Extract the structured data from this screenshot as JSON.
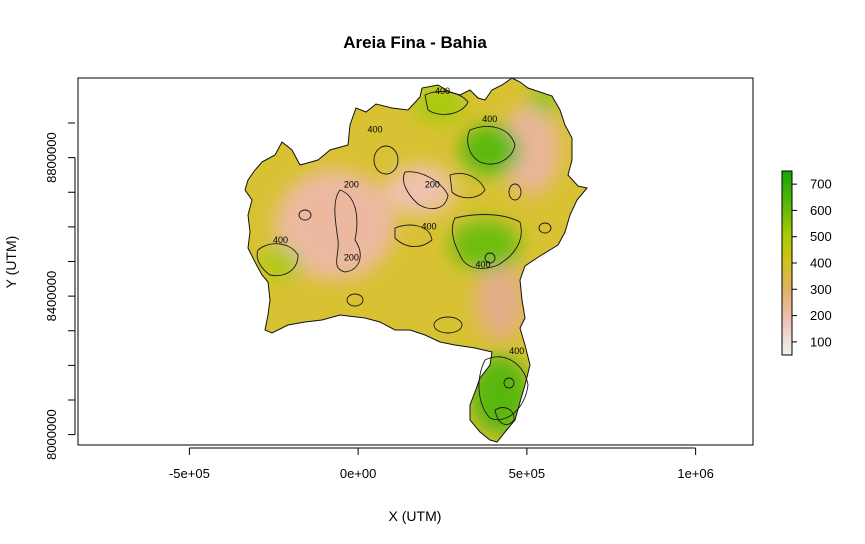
{
  "chart_data": {
    "type": "heatmap",
    "title": "Areia Fina - Bahia",
    "xlabel": "X (UTM)",
    "ylabel": "Y (UTM)",
    "xlim": [
      -830000,
      1170000
    ],
    "ylim": [
      7970000,
      9030000
    ],
    "x_ticks": [
      {
        "value": -500000,
        "label": "-5e+05"
      },
      {
        "value": 0,
        "label": "0e+00"
      },
      {
        "value": 500000,
        "label": "5e+05"
      },
      {
        "value": 1000000,
        "label": "1e+06"
      }
    ],
    "y_ticks": [
      {
        "value": 8000000,
        "label": "8000000"
      },
      {
        "value": 8400000,
        "label": "8400000"
      },
      {
        "value": 8800000,
        "label": "8800000"
      }
    ],
    "colorbar": {
      "range": [
        50,
        750
      ],
      "ticks": [
        100,
        200,
        300,
        400,
        500,
        600,
        700
      ],
      "colors": [
        "#f2f2f2",
        "#edc0b0",
        "#e1b26a",
        "#d2c21c",
        "#a7cb08",
        "#5ab806",
        "#12a702"
      ]
    },
    "contour_levels": [
      200,
      400
    ],
    "contour_labels": [
      {
        "text": "400",
        "x": 250000,
        "y": 8990000
      },
      {
        "text": "400",
        "x": 390000,
        "y": 8910000
      },
      {
        "text": "400",
        "x": 50000,
        "y": 8880000
      },
      {
        "text": "200",
        "x": -20000,
        "y": 8720000
      },
      {
        "text": "200",
        "x": 220000,
        "y": 8720000
      },
      {
        "text": "400",
        "x": 210000,
        "y": 8600000
      },
      {
        "text": "400",
        "x": -230000,
        "y": 8560000
      },
      {
        "text": "200",
        "x": -20000,
        "y": 8510000
      },
      {
        "text": "400",
        "x": 370000,
        "y": 8490000
      },
      {
        "text": "400",
        "x": 470000,
        "y": 8240000
      }
    ]
  }
}
